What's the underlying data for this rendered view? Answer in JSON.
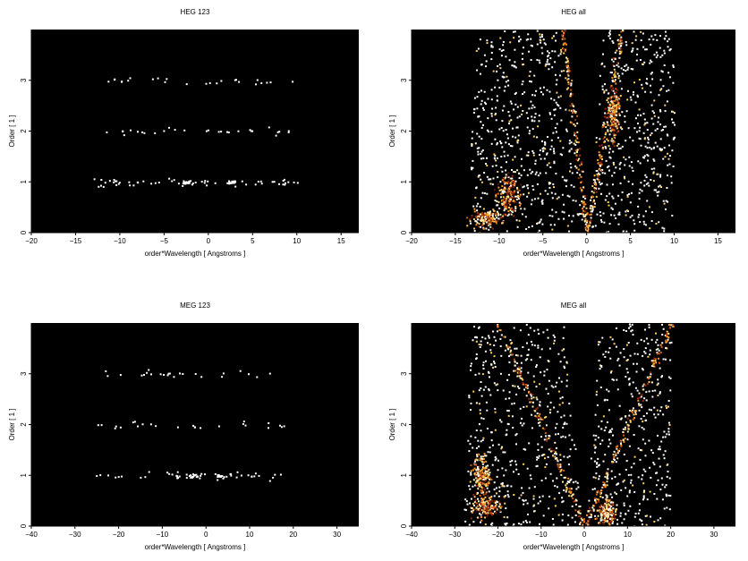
{
  "chart_data": [
    {
      "type": "heatmap",
      "title": "HEG 123",
      "xlabel": "order*Wavelength [ Angstroms ]",
      "ylabel": "Order [ 1 ]",
      "xlim": [
        -20,
        17
      ],
      "ylim": [
        0,
        4
      ],
      "xticks": [
        -20,
        -15,
        -10,
        -5,
        0,
        5,
        10,
        15
      ],
      "yticks": [
        0,
        1,
        2,
        3
      ],
      "background": "#000000",
      "pattern": "sparse",
      "bands": [
        {
          "order": 3,
          "xmin": -12,
          "xmax": 9.5,
          "density": 0.08
        },
        {
          "order": 2,
          "xmin": -13,
          "xmax": 9,
          "density": 0.09
        },
        {
          "order": 1,
          "xmin": -13,
          "xmax": 10,
          "density": 0.18
        }
      ],
      "hotspots": [
        {
          "x": -2.5,
          "y": 1.0,
          "spread": 0.8,
          "count": 18
        },
        {
          "x": 2.5,
          "y": 1.0,
          "spread": 0.8,
          "count": 20
        }
      ]
    },
    {
      "type": "heatmap",
      "title": "HEG all",
      "xlabel": "order*Wavelength [ Angstroms ]",
      "ylabel": "Order [ 1 ]",
      "xlim": [
        -20,
        17
      ],
      "ylim": [
        0,
        4
      ],
      "xticks": [
        -20,
        -15,
        -10,
        -5,
        0,
        5,
        10,
        15
      ],
      "yticks": [
        0,
        1,
        2,
        3
      ],
      "background": "#000000",
      "pattern": "dense",
      "fan": {
        "left_edge": -13.5,
        "right_edge": 10.0,
        "density": 0.42
      },
      "streaks": [
        {
          "x0": 0.0,
          "slope": 1.0,
          "width": 0.5
        },
        {
          "x0": 0.0,
          "slope": -0.7,
          "width": 0.5
        }
      ],
      "blobs": [
        {
          "x": -11.5,
          "y": 0.3,
          "rx": 2.5,
          "ry": 0.25
        },
        {
          "x": -9.0,
          "y": 0.8,
          "rx": 2.0,
          "ry": 0.6
        },
        {
          "x": 3.0,
          "y": 2.3,
          "rx": 1.2,
          "ry": 0.8
        }
      ]
    },
    {
      "type": "heatmap",
      "title": "MEG 123",
      "xlabel": "order*Wavelength [ Angstroms ]",
      "ylabel": "Order [ 1 ]",
      "xlim": [
        -40,
        35
      ],
      "ylim": [
        0,
        4
      ],
      "xticks": [
        -40,
        -30,
        -20,
        -10,
        0,
        10,
        20,
        30
      ],
      "yticks": [
        0,
        1,
        2,
        3
      ],
      "background": "#000000",
      "pattern": "sparse",
      "bands": [
        {
          "order": 3,
          "xmin": -26,
          "xmax": 16,
          "density": 0.08
        },
        {
          "order": 2,
          "xmin": -26,
          "xmax": 18,
          "density": 0.08
        },
        {
          "order": 1,
          "xmin": -27,
          "xmax": 18,
          "density": 0.14
        }
      ],
      "hotspots": [
        {
          "x": -3,
          "y": 1.0,
          "spread": 1.5,
          "count": 12
        },
        {
          "x": 3,
          "y": 1.0,
          "spread": 1.5,
          "count": 12
        }
      ]
    },
    {
      "type": "heatmap",
      "title": "MEG all",
      "xlabel": "order*Wavelength [ Angstroms ]",
      "ylabel": "Order [ 1 ]",
      "xlim": [
        -40,
        35
      ],
      "ylim": [
        0,
        4
      ],
      "xticks": [
        -40,
        -30,
        -20,
        -10,
        0,
        10,
        20,
        30
      ],
      "yticks": [
        0,
        1,
        2,
        3
      ],
      "background": "#000000",
      "pattern": "dense",
      "fan": {
        "left_edge": -28.0,
        "right_edge": 20.0,
        "density": 0.38
      },
      "streaks": [
        {
          "x0": 0.0,
          "slope": 5.0,
          "width": 1.2
        },
        {
          "x0": 0.0,
          "slope": -5.0,
          "width": 1.2
        }
      ],
      "blobs": [
        {
          "x": -23.0,
          "y": 0.4,
          "rx": 5.0,
          "ry": 0.3
        },
        {
          "x": -24.0,
          "y": 1.0,
          "rx": 3.0,
          "ry": 0.6
        },
        {
          "x": 5.0,
          "y": 0.3,
          "rx": 3.0,
          "ry": 0.4
        }
      ]
    }
  ]
}
